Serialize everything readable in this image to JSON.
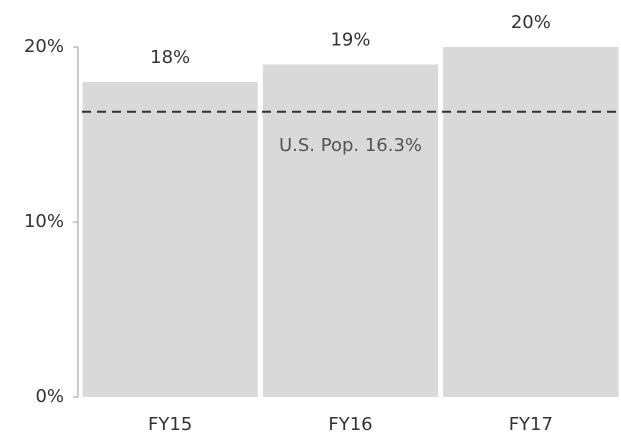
{
  "chart_data": {
    "type": "bar",
    "categories": [
      "FY15",
      "FY16",
      "FY17"
    ],
    "values": [
      18,
      19,
      20
    ],
    "value_labels": [
      "18%",
      "19%",
      "20%"
    ],
    "color": "#d9d9d9",
    "ylim": [
      0,
      20
    ],
    "yticks": [
      {
        "value": 0,
        "label": "0%"
      },
      {
        "value": 10,
        "label": "10%"
      },
      {
        "value": 20,
        "label": "20%"
      }
    ],
    "reference_line": {
      "value": 16.3,
      "label": "U.S. Pop. 16.3%",
      "color": "#333333"
    }
  }
}
